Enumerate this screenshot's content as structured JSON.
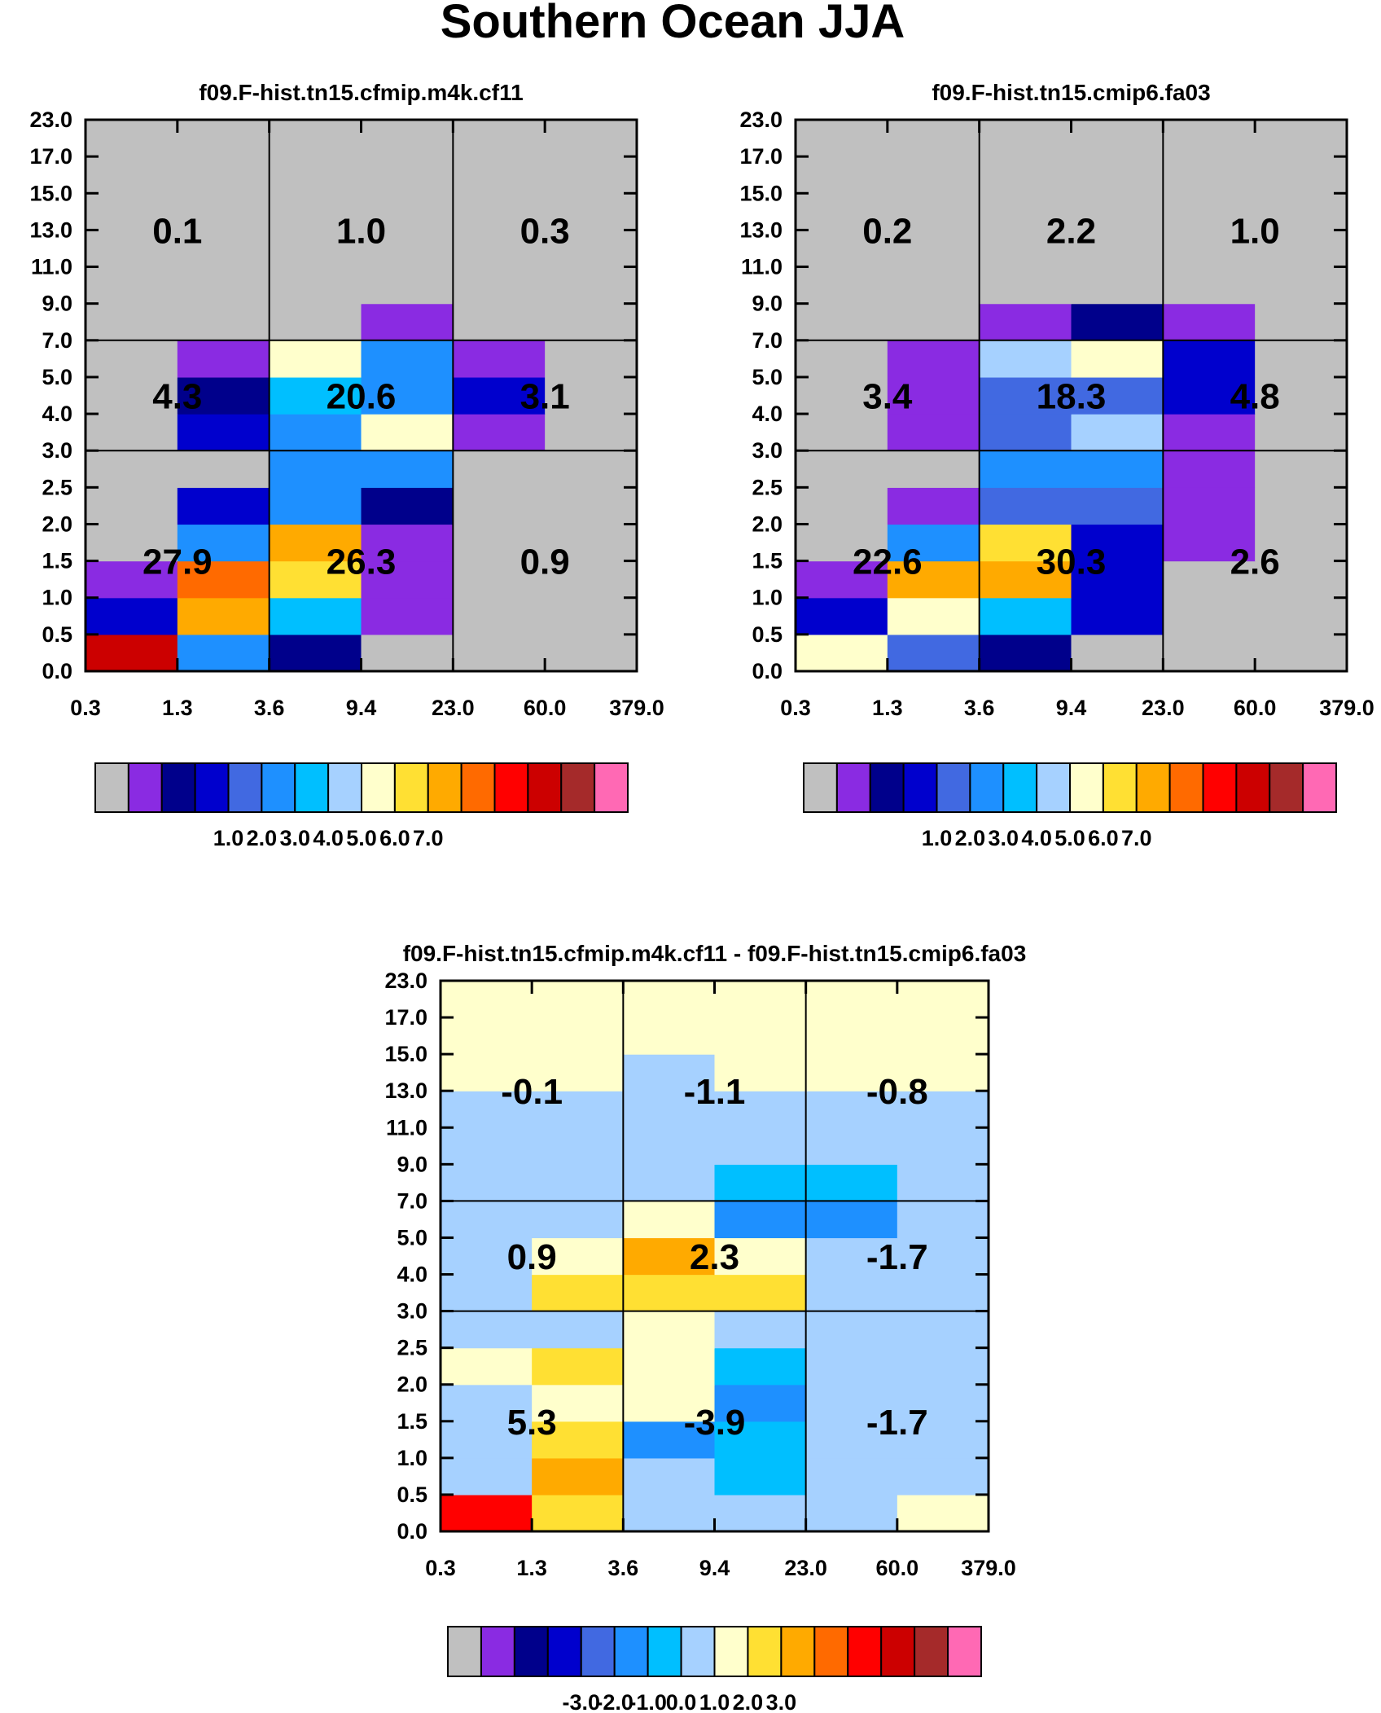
{
  "page_title": "Southern Ocean JJA",
  "colors": {
    "palette": [
      "#c0c0c0",
      "#8a2be2",
      "#00008b",
      "#0000cd",
      "#4169e1",
      "#1e90ff",
      "#00bfff",
      "#a6d1ff",
      "#ffffcc",
      "#ffe033",
      "#ffaa00",
      "#ff6a00",
      "#ff0000",
      "#cc0000",
      "#a52a2a",
      "#ff69b4"
    ]
  },
  "chart_data": [
    {
      "type": "heatmap",
      "title": "f09.F-hist.tn15.cfmip.m4k.cf11",
      "x_ticks": [
        "0.3",
        "1.3",
        "3.6",
        "9.4",
        "23.0",
        "60.0",
        "379.0"
      ],
      "y_ticks": [
        "0.0",
        "0.5",
        "1.0",
        "1.5",
        "2.0",
        "2.5",
        "3.0",
        "4.0",
        "5.0",
        "7.0",
        "9.0",
        "11.0",
        "13.0",
        "15.0",
        "17.0",
        "23.0"
      ],
      "color_index_grid": [
        [
          13,
          5,
          2,
          0,
          0,
          0
        ],
        [
          3,
          10,
          6,
          1,
          0,
          0
        ],
        [
          1,
          11,
          9,
          1,
          0,
          0
        ],
        [
          0,
          5,
          10,
          1,
          0,
          0
        ],
        [
          0,
          3,
          5,
          2,
          0,
          0
        ],
        [
          0,
          0,
          5,
          5,
          0,
          0
        ],
        [
          0,
          3,
          5,
          8,
          1,
          0
        ],
        [
          0,
          2,
          6,
          5,
          3,
          0
        ],
        [
          0,
          1,
          8,
          5,
          1,
          0
        ],
        [
          0,
          0,
          0,
          1,
          0,
          0
        ],
        [
          0,
          0,
          0,
          0,
          0,
          0
        ],
        [
          0,
          0,
          0,
          0,
          0,
          0
        ],
        [
          0,
          0,
          0,
          0,
          0,
          0
        ],
        [
          0,
          0,
          0,
          0,
          0,
          0
        ],
        [
          0,
          0,
          0,
          0,
          0,
          0
        ]
      ],
      "group_values": [
        [
          "27.9",
          "26.3",
          "0.9"
        ],
        [
          "4.3",
          "20.6",
          "3.1"
        ],
        [
          "0.1",
          "1.0",
          "0.3"
        ]
      ],
      "colorbar_labels": [
        "1.0",
        "2.0",
        "3.0",
        "4.0",
        "5.0",
        "6.0",
        "7.0"
      ]
    },
    {
      "type": "heatmap",
      "title": "f09.F-hist.tn15.cmip6.fa03",
      "x_ticks": [
        "0.3",
        "1.3",
        "3.6",
        "9.4",
        "23.0",
        "60.0",
        "379.0"
      ],
      "y_ticks": [
        "0.0",
        "0.5",
        "1.0",
        "1.5",
        "2.0",
        "2.5",
        "3.0",
        "4.0",
        "5.0",
        "7.0",
        "9.0",
        "11.0",
        "13.0",
        "15.0",
        "17.0",
        "23.0"
      ],
      "color_index_grid": [
        [
          8,
          4,
          2,
          0,
          0,
          0
        ],
        [
          3,
          8,
          6,
          3,
          0,
          0
        ],
        [
          1,
          10,
          10,
          3,
          0,
          0
        ],
        [
          0,
          5,
          9,
          3,
          1,
          0
        ],
        [
          0,
          1,
          4,
          4,
          1,
          0
        ],
        [
          0,
          0,
          5,
          5,
          1,
          0
        ],
        [
          0,
          1,
          4,
          7,
          1,
          0
        ],
        [
          0,
          1,
          4,
          4,
          3,
          0
        ],
        [
          0,
          1,
          7,
          8,
          3,
          0
        ],
        [
          0,
          0,
          1,
          2,
          1,
          0
        ],
        [
          0,
          0,
          0,
          0,
          0,
          0
        ],
        [
          0,
          0,
          0,
          0,
          0,
          0
        ],
        [
          0,
          0,
          0,
          0,
          0,
          0
        ],
        [
          0,
          0,
          0,
          0,
          0,
          0
        ],
        [
          0,
          0,
          0,
          0,
          0,
          0
        ]
      ],
      "group_values": [
        [
          "22.6",
          "30.3",
          "2.6"
        ],
        [
          "3.4",
          "18.3",
          "4.8"
        ],
        [
          "0.2",
          "2.2",
          "1.0"
        ]
      ],
      "colorbar_labels": [
        "1.0",
        "2.0",
        "3.0",
        "4.0",
        "5.0",
        "6.0",
        "7.0"
      ]
    },
    {
      "type": "heatmap",
      "title": "f09.F-hist.tn15.cfmip.m4k.cf11 - f09.F-hist.tn15.cmip6.fa03",
      "x_ticks": [
        "0.3",
        "1.3",
        "3.6",
        "9.4",
        "23.0",
        "60.0",
        "379.0"
      ],
      "y_ticks": [
        "0.0",
        "0.5",
        "1.0",
        "1.5",
        "2.0",
        "2.5",
        "3.0",
        "4.0",
        "5.0",
        "7.0",
        "9.0",
        "11.0",
        "13.0",
        "15.0",
        "17.0",
        "23.0"
      ],
      "color_index_grid": [
        [
          12,
          9,
          7,
          7,
          7,
          8
        ],
        [
          7,
          10,
          7,
          6,
          7,
          7
        ],
        [
          7,
          9,
          5,
          6,
          7,
          7
        ],
        [
          7,
          8,
          8,
          5,
          7,
          7
        ],
        [
          8,
          9,
          8,
          6,
          7,
          7
        ],
        [
          7,
          7,
          8,
          7,
          7,
          7
        ],
        [
          7,
          9,
          9,
          9,
          7,
          7
        ],
        [
          7,
          8,
          10,
          8,
          7,
          7
        ],
        [
          7,
          7,
          8,
          5,
          5,
          7
        ],
        [
          7,
          7,
          7,
          6,
          6,
          7
        ],
        [
          7,
          7,
          7,
          7,
          7,
          7
        ],
        [
          7,
          7,
          7,
          7,
          7,
          7
        ],
        [
          8,
          8,
          7,
          8,
          8,
          8
        ],
        [
          8,
          8,
          8,
          8,
          8,
          8
        ],
        [
          8,
          8,
          8,
          8,
          8,
          8
        ]
      ],
      "group_values": [
        [
          "5.3",
          "-3.9",
          "-1.7"
        ],
        [
          "0.9",
          "2.3",
          "-1.7"
        ],
        [
          "-0.1",
          "-1.1",
          "-0.8"
        ]
      ],
      "colorbar_labels": [
        "-3.0",
        "-2.0",
        "-1.0",
        "0.0",
        "1.0",
        "2.0",
        "3.0"
      ]
    }
  ]
}
